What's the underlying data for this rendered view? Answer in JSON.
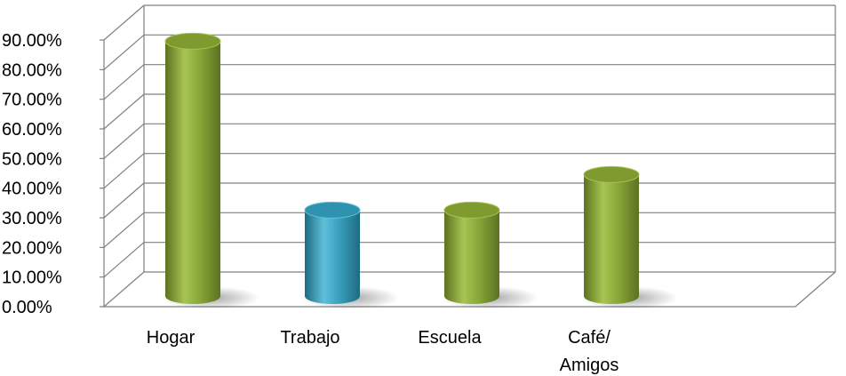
{
  "chart_data": {
    "type": "bar",
    "style": "3d-cylinder",
    "categories": [
      "Hogar",
      "Trabajo",
      "Escuela",
      "Café/\nAmigos"
    ],
    "values": [
      86,
      29,
      29,
      41
    ],
    "y_tick_labels": [
      "0.00%",
      "10.00%",
      "20.00%",
      "30.00%",
      "40.00%",
      "50.00%",
      "60.00%",
      "70.00%",
      "80.00%",
      "90.00%"
    ],
    "ylim": [
      0,
      90
    ],
    "grid": true,
    "legend": "none",
    "title": "",
    "xlabel": "",
    "ylabel": "",
    "colors": {
      "default_bar": "#7f9a2e",
      "default_bar_light": "#a7c552",
      "default_bar_dark": "#5c7220",
      "highlight_bar": "#2f93b0",
      "highlight_bar_light": "#5fc0da",
      "highlight_bar_dark": "#1e6b82",
      "grid": "#7f7f7f"
    },
    "highlight_index": 1
  }
}
